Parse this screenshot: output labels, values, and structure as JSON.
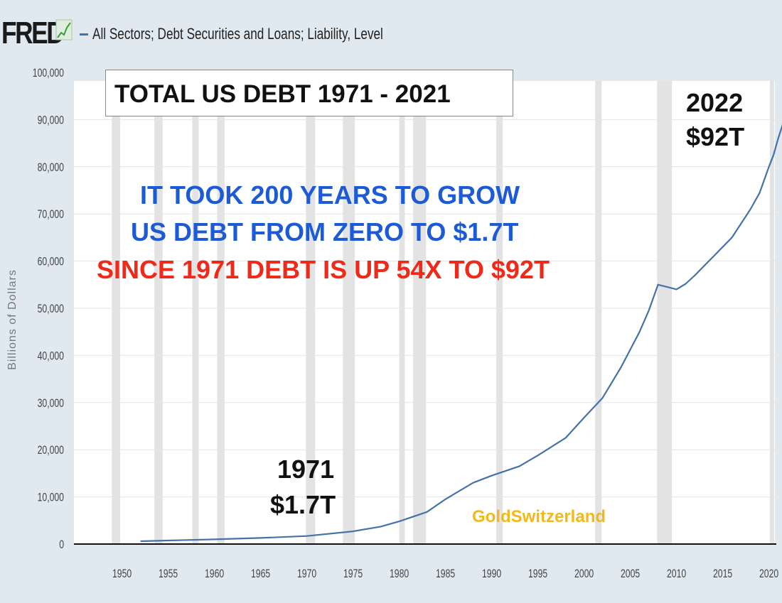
{
  "header": {
    "logo_text": "FRED",
    "series_title": "All Sectors; Debt Securities and Loans; Liability, Level"
  },
  "colors": {
    "background": "#e1e9f0",
    "plot_background": "#ffffff",
    "recession_band": "#e3e3e3",
    "line": "#4572a7",
    "blue_text": "#1d5bd6",
    "red_text": "#ee2a1b",
    "watermark": "#f2b91e"
  },
  "annotations": {
    "title": "TOTAL US DEBT 1971 - 2021",
    "year_2022": "2022",
    "value_2022": "$92T",
    "year_1971": "1971",
    "value_1971": "$1.7T",
    "line1": "IT TOOK 200 YEARS TO GROW",
    "line2": "US DEBT FROM ZERO TO $1.7T",
    "line3": "SINCE 1971 DEBT IS UP 54X TO $92T",
    "watermark": "GoldSwitzerland"
  },
  "chart_data": {
    "type": "line",
    "title": "TOTAL US DEBT 1971 - 2021",
    "xlabel": "",
    "ylabel": "Billions of Dollars",
    "xlim": [
      1945.3,
      2022.1
    ],
    "ylim": [
      0,
      100000
    ],
    "y_ticks": [
      0,
      10000,
      20000,
      30000,
      40000,
      50000,
      60000,
      70000,
      80000,
      90000,
      100000
    ],
    "y_tick_labels": [
      "0",
      "10,000",
      "20,000",
      "30,000",
      "40,000",
      "50,000",
      "60,000",
      "70,000",
      "80,000",
      "90,000",
      "100,000"
    ],
    "x_ticks": [
      1950,
      1955,
      1960,
      1965,
      1970,
      1975,
      1980,
      1985,
      1990,
      1995,
      2000,
      2005,
      2010,
      2015,
      2020
    ],
    "x_tick_labels": [
      "1950",
      "1955",
      "1960",
      "1965",
      "1970",
      "1975",
      "1980",
      "1985",
      "1990",
      "1995",
      "2000",
      "2005",
      "2010",
      "2015",
      "2020"
    ],
    "recessions": [
      [
        1948.9,
        1949.8
      ],
      [
        1953.5,
        1954.4
      ],
      [
        1957.6,
        1958.3
      ],
      [
        1960.3,
        1961.1
      ],
      [
        1969.9,
        1970.9
      ],
      [
        1973.9,
        1975.2
      ],
      [
        1980.0,
        1980.6
      ],
      [
        1981.5,
        1982.9
      ],
      [
        1990.5,
        1991.2
      ],
      [
        2001.2,
        2001.9
      ],
      [
        2007.9,
        2009.5
      ],
      [
        2020.1,
        2020.4
      ]
    ],
    "grid": true,
    "series": [
      {
        "x": [
          1952,
          1955,
          1960,
          1965,
          1970,
          1975,
          1978,
          1980,
          1983,
          1985,
          1988,
          1990,
          1993,
          1995,
          1998,
          2000,
          2002,
          2004,
          2006,
          2007,
          2008,
          2009,
          2010,
          2011,
          2012,
          2013,
          2014,
          2015,
          2016,
          2017,
          2018,
          2019,
          2020,
          2020.5,
          2021,
          2021.5,
          2022
        ],
        "y": [
          600,
          750,
          1000,
          1300,
          1700,
          2700,
          3700,
          4800,
          6800,
          9500,
          13000,
          14500,
          16500,
          18800,
          22500,
          26800,
          31000,
          37500,
          45000,
          49500,
          55000,
          54500,
          54000,
          55200,
          57000,
          59000,
          61000,
          63000,
          65000,
          68000,
          71000,
          74500,
          80000,
          82500,
          86000,
          89000,
          92000
        ]
      }
    ]
  }
}
